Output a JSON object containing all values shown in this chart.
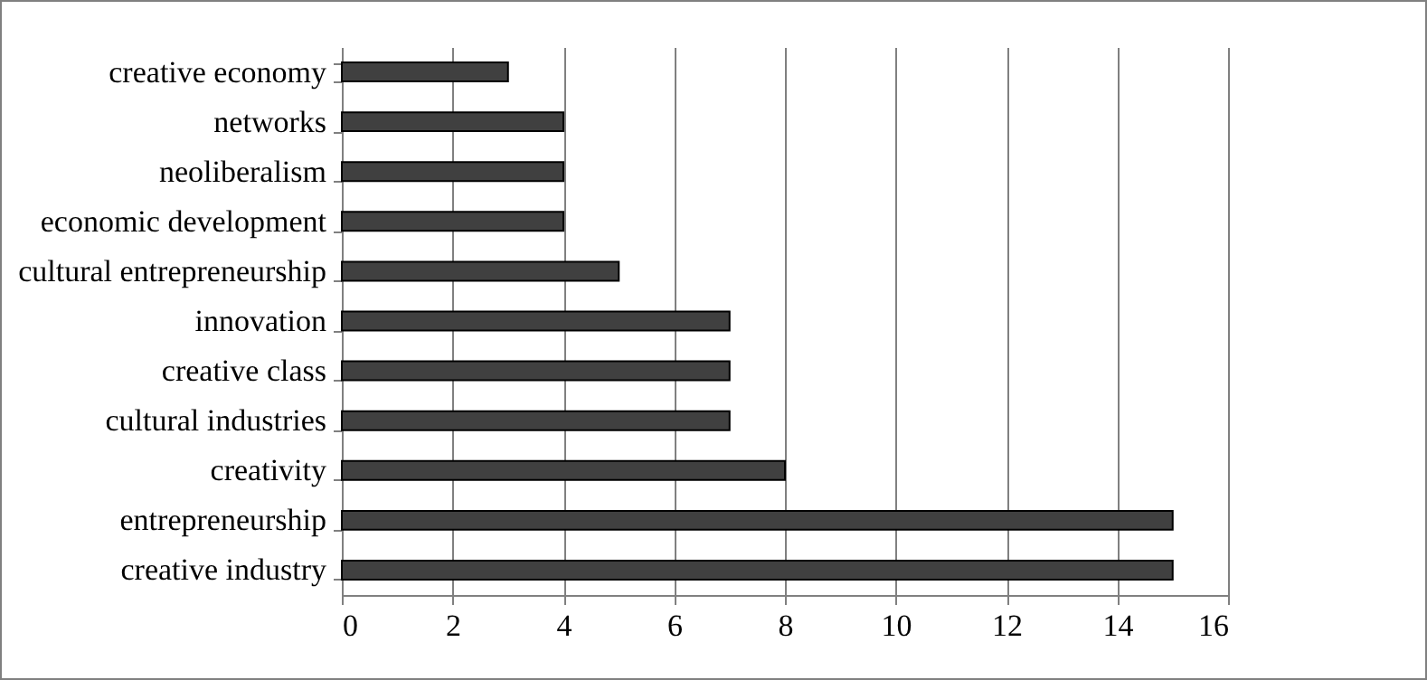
{
  "chart_data": {
    "type": "bar",
    "orientation": "horizontal",
    "categories": [
      "creative economy",
      "networks",
      "neoliberalism",
      "economic development",
      "cultural entrepreneurship",
      "innovation",
      "creative class",
      "cultural industries",
      "creativity",
      "entrepreneurship",
      "creative industry"
    ],
    "values": [
      3,
      4,
      4,
      4,
      5,
      7,
      7,
      7,
      8,
      15,
      15
    ],
    "color": "#404040",
    "xlim": [
      0,
      16
    ],
    "xticks": [
      0,
      2,
      4,
      6,
      8,
      10,
      12,
      14,
      16
    ],
    "grid": "x"
  }
}
